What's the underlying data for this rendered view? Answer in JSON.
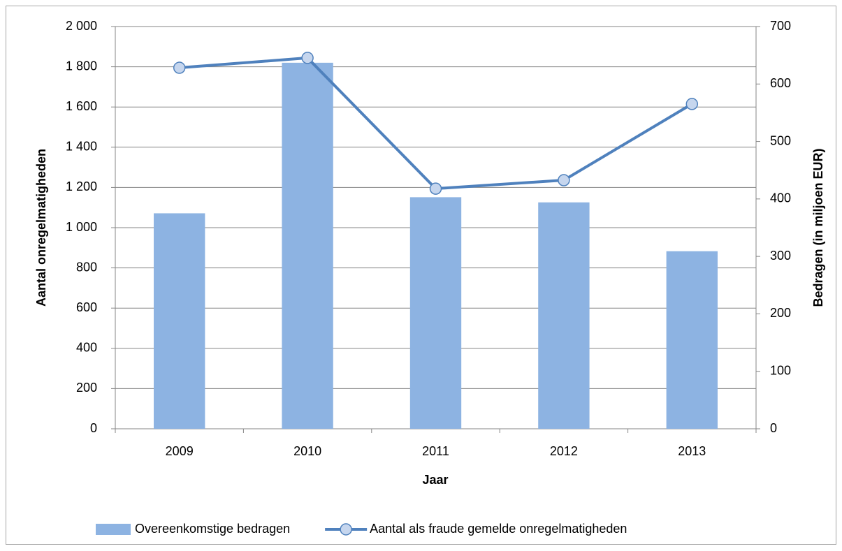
{
  "chart_data": {
    "type": "bar",
    "x_label": "Jaar",
    "y_label": "Aantal onregelmatigheden",
    "y2_label": "Bedragen (in miljoen EUR)",
    "categories": [
      "2009",
      "2010",
      "2011",
      "2012",
      "2013"
    ],
    "series": [
      {
        "name": "Overeenkomstige bedragen",
        "type": "bar",
        "axis": "y2",
        "color": "#8db3e2",
        "values": [
          375,
          637,
          403,
          394,
          309
        ]
      },
      {
        "name": "Aantal als fraude gemelde onregelmatigheden",
        "type": "line",
        "axis": "y",
        "color": "#4f81bd",
        "marker_fill": "#c6d6ee",
        "values": [
          1795,
          1844,
          1194,
          1236,
          1615
        ]
      }
    ],
    "ylim": [
      0,
      2000
    ],
    "yticks": [
      0,
      200,
      400,
      600,
      800,
      {
        "value": 1000,
        "label": "1 000"
      },
      {
        "value": 1200,
        "label": "1 200"
      },
      {
        "value": 1400,
        "label": "1 400"
      },
      {
        "value": 1600,
        "label": "1 600"
      },
      {
        "value": 1800,
        "label": "1 800"
      },
      {
        "value": 2000,
        "label": "2 000"
      }
    ],
    "y2lim": [
      0,
      700
    ],
    "y2ticks": [
      0,
      100,
      200,
      300,
      400,
      500,
      600,
      700
    ],
    "grid": true,
    "legend": "bottom"
  }
}
